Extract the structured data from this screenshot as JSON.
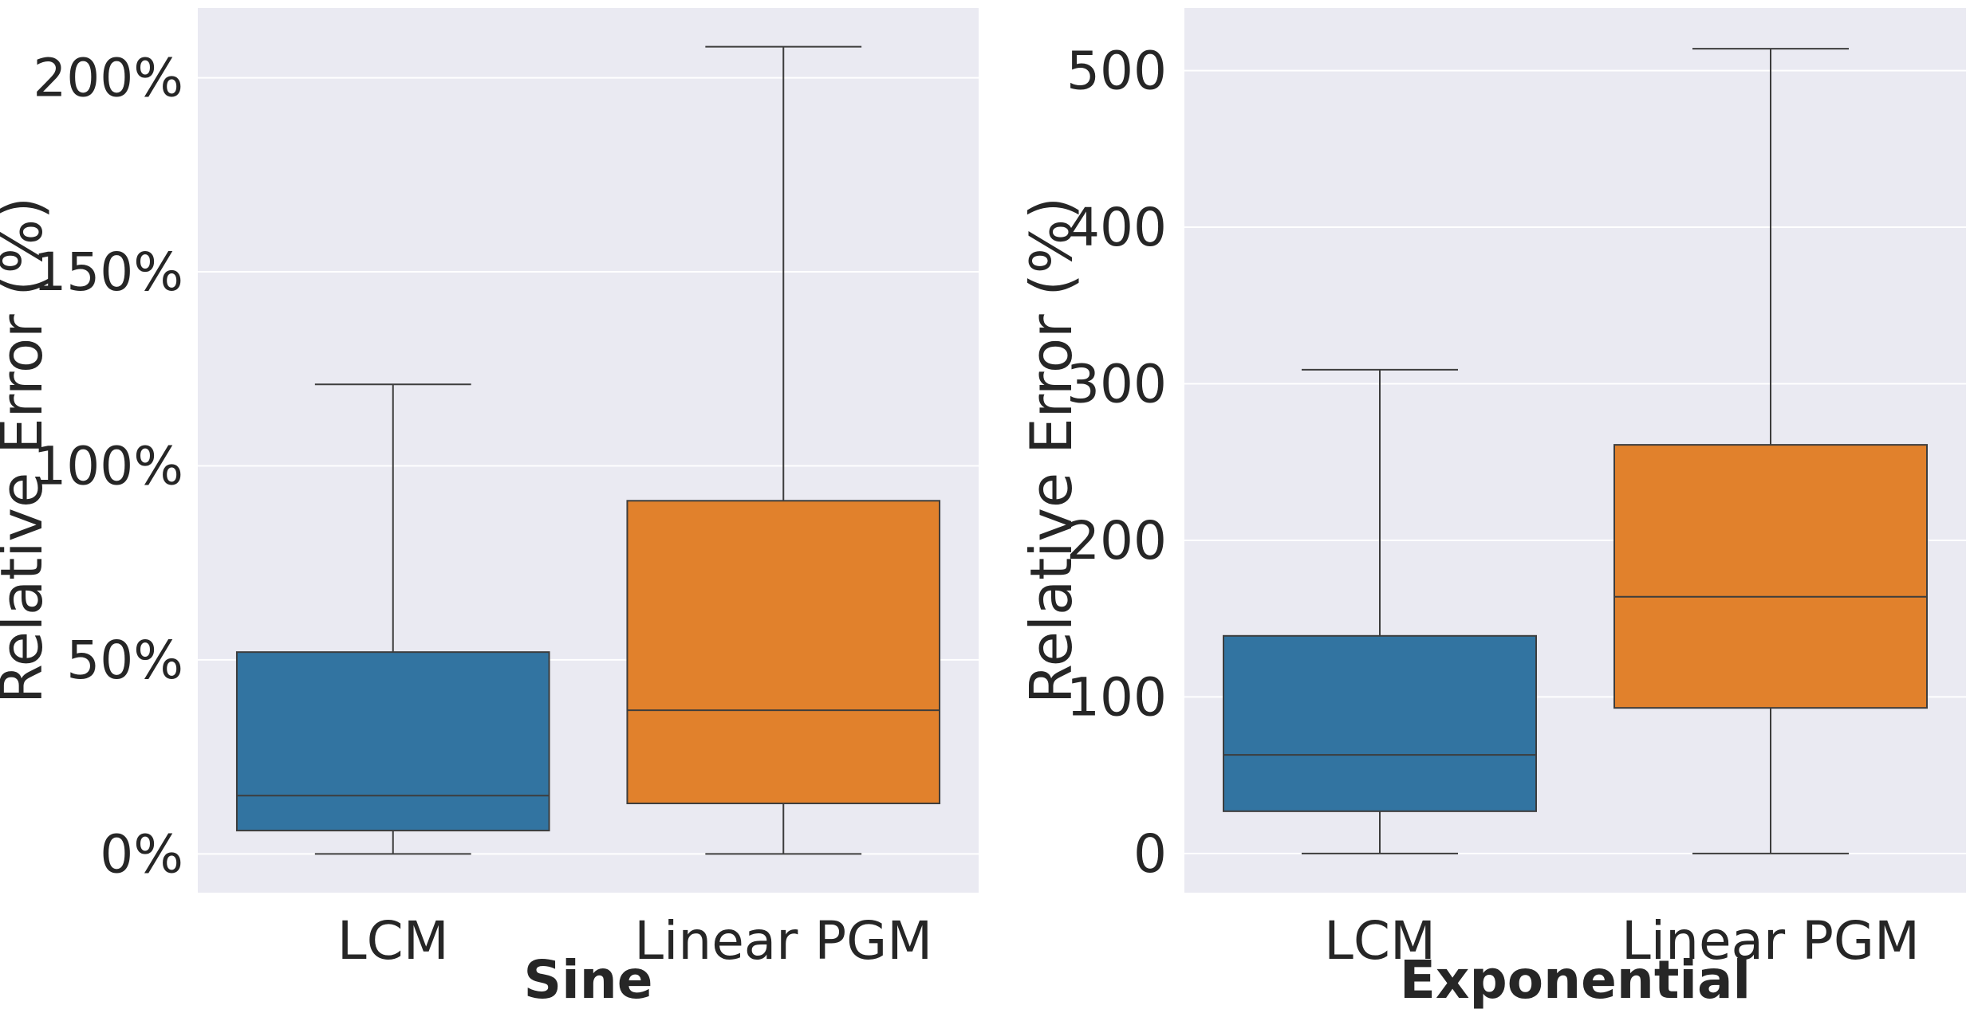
{
  "colors": {
    "background": "#eaeaf2",
    "grid": "#ffffff",
    "series": [
      "#3274a1",
      "#e1812c"
    ],
    "line": "#3d3d3d"
  },
  "chart_data": [
    {
      "type": "box",
      "xlabel": "Sine",
      "ylabel": "Relative Error (%)",
      "ylim": [
        -10,
        218
      ],
      "yticks": [
        0,
        50,
        100,
        150,
        200
      ],
      "ytick_labels": [
        "0%",
        "50%",
        "100%",
        "150%",
        "200%"
      ],
      "grid": true,
      "categories": [
        "LCM",
        "Linear PGM"
      ],
      "boxes": [
        {
          "label": "LCM",
          "whisker_low": 0,
          "q1": 6,
          "median": 15,
          "q3": 52,
          "whisker_high": 121
        },
        {
          "label": "Linear PGM",
          "whisker_low": 0,
          "q1": 13,
          "median": 37,
          "q3": 91,
          "whisker_high": 208
        }
      ]
    },
    {
      "type": "box",
      "xlabel": "Exponential",
      "ylabel": "Relative Error (%)",
      "ylim": [
        -25,
        540
      ],
      "yticks": [
        0,
        100,
        200,
        300,
        400,
        500
      ],
      "ytick_labels": [
        "0",
        "100",
        "200",
        "300",
        "400",
        "500"
      ],
      "grid": true,
      "categories": [
        "LCM",
        "Linear PGM"
      ],
      "boxes": [
        {
          "label": "LCM",
          "whisker_low": 0,
          "q1": 27,
          "median": 63,
          "q3": 139,
          "whisker_high": 309
        },
        {
          "label": "Linear PGM",
          "whisker_low": 0,
          "q1": 93,
          "median": 164,
          "q3": 261,
          "whisker_high": 514
        }
      ]
    }
  ]
}
